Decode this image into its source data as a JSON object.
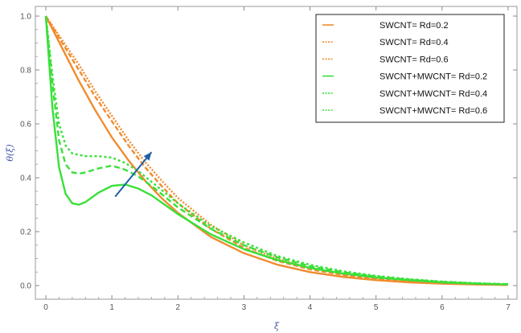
{
  "chart_data": {
    "type": "line",
    "xlabel": "ξ",
    "ylabel": "θ(ξ)",
    "xlim": [
      0,
      7
    ],
    "ylim": [
      0,
      1.0
    ],
    "x_ticks": [
      "0",
      "1",
      "2",
      "3",
      "4",
      "5",
      "6",
      "7"
    ],
    "y_ticks": [
      "0.0",
      "0.2",
      "0.4",
      "0.6",
      "0.8",
      "1.0"
    ],
    "grid": false,
    "legend_position": "top-right",
    "colors": {
      "swcnt": "#f08c2e",
      "hybrid": "#39e039",
      "arrow": "#1f5fa8"
    },
    "series": [
      {
        "name": "SWCNT= Rd=0.2",
        "color": "#f08c2e",
        "dash": "solid",
        "x": [
          0,
          0.25,
          0.5,
          0.75,
          1,
          1.25,
          1.5,
          1.75,
          2,
          2.5,
          3,
          3.5,
          4,
          4.5,
          5,
          5.5,
          6,
          6.5,
          7
        ],
        "y": [
          1.0,
          0.88,
          0.76,
          0.65,
          0.55,
          0.465,
          0.39,
          0.325,
          0.27,
          0.18,
          0.12,
          0.078,
          0.05,
          0.032,
          0.02,
          0.012,
          0.007,
          0.004,
          0.002
        ]
      },
      {
        "name": "SWCNT= Rd=0.4",
        "color": "#f08c2e",
        "dash": "6,3",
        "x": [
          0,
          0.25,
          0.5,
          0.75,
          1,
          1.25,
          1.5,
          1.75,
          2,
          2.5,
          3,
          3.5,
          4,
          4.5,
          5,
          5.5,
          6,
          6.5,
          7
        ],
        "y": [
          1.0,
          0.9,
          0.8,
          0.7,
          0.61,
          0.52,
          0.44,
          0.37,
          0.305,
          0.21,
          0.14,
          0.092,
          0.06,
          0.039,
          0.025,
          0.015,
          0.009,
          0.005,
          0.003
        ]
      },
      {
        "name": "SWCNT= Rd=0.6",
        "color": "#f08c2e",
        "dash": "2,2",
        "x": [
          0,
          0.25,
          0.5,
          0.75,
          1,
          1.25,
          1.5,
          1.75,
          2,
          2.5,
          3,
          3.5,
          4,
          4.5,
          5,
          5.5,
          6,
          6.5,
          7
        ],
        "y": [
          1.0,
          0.91,
          0.82,
          0.72,
          0.63,
          0.54,
          0.46,
          0.39,
          0.325,
          0.225,
          0.15,
          0.1,
          0.066,
          0.043,
          0.028,
          0.017,
          0.01,
          0.006,
          0.003
        ]
      },
      {
        "name": "SWCNT+MWCNT= Rd=0.2",
        "color": "#39e039",
        "dash": "solid",
        "x": [
          0,
          0.1,
          0.2,
          0.3,
          0.4,
          0.5,
          0.6,
          0.8,
          1,
          1.2,
          1.4,
          1.6,
          1.8,
          2,
          2.5,
          3,
          3.5,
          4,
          4.5,
          5,
          5.5,
          6,
          6.5,
          7
        ],
        "y": [
          1.0,
          0.66,
          0.44,
          0.34,
          0.305,
          0.3,
          0.31,
          0.345,
          0.37,
          0.375,
          0.36,
          0.335,
          0.3,
          0.265,
          0.19,
          0.135,
          0.095,
          0.065,
          0.045,
          0.03,
          0.02,
          0.012,
          0.007,
          0.004
        ]
      },
      {
        "name": "SWCNT+MWCNT= Rd=0.4",
        "color": "#39e039",
        "dash": "7,4",
        "x": [
          0,
          0.1,
          0.2,
          0.3,
          0.4,
          0.5,
          0.6,
          0.8,
          1,
          1.2,
          1.4,
          1.6,
          1.8,
          2,
          2.5,
          3,
          3.5,
          4,
          4.5,
          5,
          5.5,
          6,
          6.5,
          7
        ],
        "y": [
          1.0,
          0.75,
          0.54,
          0.45,
          0.42,
          0.415,
          0.42,
          0.435,
          0.445,
          0.43,
          0.405,
          0.37,
          0.33,
          0.29,
          0.21,
          0.15,
          0.105,
          0.072,
          0.05,
          0.033,
          0.022,
          0.014,
          0.008,
          0.005
        ]
      },
      {
        "name": "SWCNT+MWCNT= Rd=0.6",
        "color": "#39e039",
        "dash": "3,3",
        "x": [
          0,
          0.1,
          0.2,
          0.3,
          0.4,
          0.5,
          0.6,
          0.8,
          1,
          1.2,
          1.4,
          1.6,
          1.8,
          2,
          2.5,
          3,
          3.5,
          4,
          4.5,
          5,
          5.5,
          6,
          6.5,
          7
        ],
        "y": [
          1.0,
          0.78,
          0.6,
          0.52,
          0.49,
          0.485,
          0.48,
          0.48,
          0.475,
          0.455,
          0.425,
          0.385,
          0.345,
          0.305,
          0.22,
          0.16,
          0.11,
          0.077,
          0.053,
          0.036,
          0.024,
          0.015,
          0.009,
          0.005
        ]
      }
    ],
    "arrow": {
      "from": [
        1.05,
        0.33
      ],
      "to": [
        1.6,
        0.495
      ]
    }
  }
}
